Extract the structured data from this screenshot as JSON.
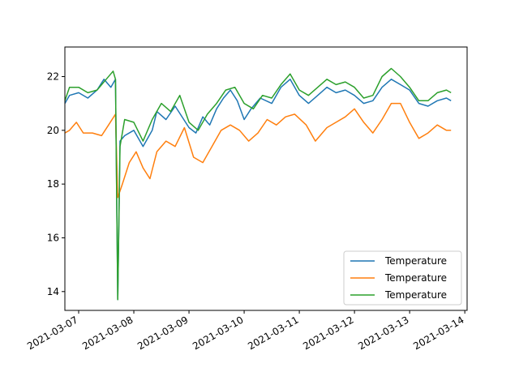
{
  "chart_data": {
    "type": "line",
    "title": "",
    "xlabel": "",
    "ylabel": "",
    "x_range": [
      "2021-03-06 18:00",
      "2021-03-14 01:00"
    ],
    "ylim": [
      13.3,
      23.1
    ],
    "x_ticks": [
      "2021-03-07",
      "2021-03-08",
      "2021-03-09",
      "2021-03-10",
      "2021-03-11",
      "2021-03-12",
      "2021-03-13",
      "2021-03-14"
    ],
    "y_ticks": [
      14,
      16,
      18,
      20,
      22
    ],
    "grid": false,
    "legend_position": "lower right",
    "series": [
      {
        "name": "Temperature",
        "color": "#1f77b4",
        "points": [
          [
            "2021-03-06 18:00",
            21.0
          ],
          [
            "2021-03-06 20:00",
            21.3
          ],
          [
            "2021-03-07 00:00",
            21.4
          ],
          [
            "2021-03-07 04:00",
            21.2
          ],
          [
            "2021-03-07 08:00",
            21.5
          ],
          [
            "2021-03-07 11:00",
            21.9
          ],
          [
            "2021-03-07 14:00",
            21.6
          ],
          [
            "2021-03-07 16:00",
            21.9
          ],
          [
            "2021-03-07 17:00",
            13.7
          ],
          [
            "2021-03-07 18:00",
            19.6
          ],
          [
            "2021-03-07 20:00",
            19.8
          ],
          [
            "2021-03-08 00:00",
            20.0
          ],
          [
            "2021-03-08 04:00",
            19.4
          ],
          [
            "2021-03-08 08:00",
            20.0
          ],
          [
            "2021-03-08 10:00",
            20.7
          ],
          [
            "2021-03-08 14:00",
            20.4
          ],
          [
            "2021-03-08 18:00",
            20.9
          ],
          [
            "2021-03-09 00:00",
            20.1
          ],
          [
            "2021-03-09 03:00",
            19.9
          ],
          [
            "2021-03-09 06:00",
            20.5
          ],
          [
            "2021-03-09 09:00",
            20.2
          ],
          [
            "2021-03-09 12:00",
            20.8
          ],
          [
            "2021-03-09 15:00",
            21.2
          ],
          [
            "2021-03-09 18:00",
            21.5
          ],
          [
            "2021-03-09 21:00",
            21.1
          ],
          [
            "2021-03-10 00:00",
            20.4
          ],
          [
            "2021-03-10 03:00",
            20.8
          ],
          [
            "2021-03-10 07:00",
            21.2
          ],
          [
            "2021-03-10 12:00",
            21.0
          ],
          [
            "2021-03-10 16:00",
            21.6
          ],
          [
            "2021-03-10 20:00",
            21.9
          ],
          [
            "2021-03-11 00:00",
            21.3
          ],
          [
            "2021-03-11 04:00",
            21.0
          ],
          [
            "2021-03-11 08:00",
            21.3
          ],
          [
            "2021-03-11 12:00",
            21.6
          ],
          [
            "2021-03-11 16:00",
            21.4
          ],
          [
            "2021-03-11 20:00",
            21.5
          ],
          [
            "2021-03-12 00:00",
            21.3
          ],
          [
            "2021-03-12 04:00",
            21.0
          ],
          [
            "2021-03-12 08:00",
            21.1
          ],
          [
            "2021-03-12 12:00",
            21.6
          ],
          [
            "2021-03-12 16:00",
            21.9
          ],
          [
            "2021-03-12 20:00",
            21.7
          ],
          [
            "2021-03-13 00:00",
            21.5
          ],
          [
            "2021-03-13 04:00",
            21.0
          ],
          [
            "2021-03-13 08:00",
            20.9
          ],
          [
            "2021-03-13 12:00",
            21.1
          ],
          [
            "2021-03-13 16:00",
            21.2
          ],
          [
            "2021-03-13 18:00",
            21.1
          ]
        ]
      },
      {
        "name": "Temperature",
        "color": "#ff7f0e",
        "points": [
          [
            "2021-03-06 18:00",
            19.9
          ],
          [
            "2021-03-06 20:00",
            20.0
          ],
          [
            "2021-03-06 23:00",
            20.3
          ],
          [
            "2021-03-07 02:00",
            19.9
          ],
          [
            "2021-03-07 06:00",
            19.9
          ],
          [
            "2021-03-07 10:00",
            19.8
          ],
          [
            "2021-03-07 13:00",
            20.2
          ],
          [
            "2021-03-07 16:00",
            20.6
          ],
          [
            "2021-03-07 17:00",
            17.5
          ],
          [
            "2021-03-07 19:00",
            18.0
          ],
          [
            "2021-03-07 22:00",
            18.8
          ],
          [
            "2021-03-08 01:00",
            19.2
          ],
          [
            "2021-03-08 04:00",
            18.6
          ],
          [
            "2021-03-08 07:00",
            18.2
          ],
          [
            "2021-03-08 10:00",
            19.2
          ],
          [
            "2021-03-08 14:00",
            19.6
          ],
          [
            "2021-03-08 18:00",
            19.4
          ],
          [
            "2021-03-08 22:00",
            20.1
          ],
          [
            "2021-03-09 02:00",
            19.0
          ],
          [
            "2021-03-09 06:00",
            18.8
          ],
          [
            "2021-03-09 10:00",
            19.4
          ],
          [
            "2021-03-09 14:00",
            20.0
          ],
          [
            "2021-03-09 18:00",
            20.2
          ],
          [
            "2021-03-09 22:00",
            20.0
          ],
          [
            "2021-03-10 02:00",
            19.6
          ],
          [
            "2021-03-10 06:00",
            19.9
          ],
          [
            "2021-03-10 10:00",
            20.4
          ],
          [
            "2021-03-10 14:00",
            20.2
          ],
          [
            "2021-03-10 18:00",
            20.5
          ],
          [
            "2021-03-10 22:00",
            20.6
          ],
          [
            "2021-03-11 03:00",
            20.2
          ],
          [
            "2021-03-11 07:00",
            19.6
          ],
          [
            "2021-03-11 12:00",
            20.1
          ],
          [
            "2021-03-11 16:00",
            20.3
          ],
          [
            "2021-03-11 20:00",
            20.5
          ],
          [
            "2021-03-12 00:00",
            20.8
          ],
          [
            "2021-03-12 04:00",
            20.3
          ],
          [
            "2021-03-12 08:00",
            19.9
          ],
          [
            "2021-03-12 12:00",
            20.4
          ],
          [
            "2021-03-12 16:00",
            21.0
          ],
          [
            "2021-03-12 20:00",
            21.0
          ],
          [
            "2021-03-13 00:00",
            20.3
          ],
          [
            "2021-03-13 04:00",
            19.7
          ],
          [
            "2021-03-13 08:00",
            19.9
          ],
          [
            "2021-03-13 12:00",
            20.2
          ],
          [
            "2021-03-13 16:00",
            20.0
          ],
          [
            "2021-03-13 18:00",
            20.0
          ]
        ]
      },
      {
        "name": "Temperature",
        "color": "#2ca02c",
        "points": [
          [
            "2021-03-06 18:00",
            21.1
          ],
          [
            "2021-03-06 20:00",
            21.6
          ],
          [
            "2021-03-07 00:00",
            21.6
          ],
          [
            "2021-03-07 04:00",
            21.4
          ],
          [
            "2021-03-07 08:00",
            21.5
          ],
          [
            "2021-03-07 12:00",
            21.9
          ],
          [
            "2021-03-07 15:00",
            22.2
          ],
          [
            "2021-03-07 16:00",
            21.9
          ],
          [
            "2021-03-07 17:00",
            13.7
          ],
          [
            "2021-03-07 18:00",
            19.4
          ],
          [
            "2021-03-07 20:00",
            20.4
          ],
          [
            "2021-03-08 00:00",
            20.3
          ],
          [
            "2021-03-08 04:00",
            19.6
          ],
          [
            "2021-03-08 08:00",
            20.4
          ],
          [
            "2021-03-08 12:00",
            21.0
          ],
          [
            "2021-03-08 16:00",
            20.7
          ],
          [
            "2021-03-08 20:00",
            21.3
          ],
          [
            "2021-03-09 00:00",
            20.3
          ],
          [
            "2021-03-09 04:00",
            20.0
          ],
          [
            "2021-03-09 08:00",
            20.6
          ],
          [
            "2021-03-09 12:00",
            21.0
          ],
          [
            "2021-03-09 16:00",
            21.5
          ],
          [
            "2021-03-09 20:00",
            21.6
          ],
          [
            "2021-03-10 00:00",
            21.0
          ],
          [
            "2021-03-10 04:00",
            20.8
          ],
          [
            "2021-03-10 08:00",
            21.3
          ],
          [
            "2021-03-10 12:00",
            21.2
          ],
          [
            "2021-03-10 16:00",
            21.7
          ],
          [
            "2021-03-10 20:00",
            22.1
          ],
          [
            "2021-03-11 00:00",
            21.5
          ],
          [
            "2021-03-11 04:00",
            21.3
          ],
          [
            "2021-03-11 08:00",
            21.6
          ],
          [
            "2021-03-11 12:00",
            21.9
          ],
          [
            "2021-03-11 16:00",
            21.7
          ],
          [
            "2021-03-11 20:00",
            21.8
          ],
          [
            "2021-03-12 00:00",
            21.6
          ],
          [
            "2021-03-12 04:00",
            21.2
          ],
          [
            "2021-03-12 08:00",
            21.3
          ],
          [
            "2021-03-12 12:00",
            22.0
          ],
          [
            "2021-03-12 16:00",
            22.3
          ],
          [
            "2021-03-12 20:00",
            22.0
          ],
          [
            "2021-03-13 00:00",
            21.6
          ],
          [
            "2021-03-13 04:00",
            21.1
          ],
          [
            "2021-03-13 08:00",
            21.1
          ],
          [
            "2021-03-13 12:00",
            21.4
          ],
          [
            "2021-03-13 16:00",
            21.5
          ],
          [
            "2021-03-13 18:00",
            21.4
          ]
        ]
      }
    ]
  }
}
